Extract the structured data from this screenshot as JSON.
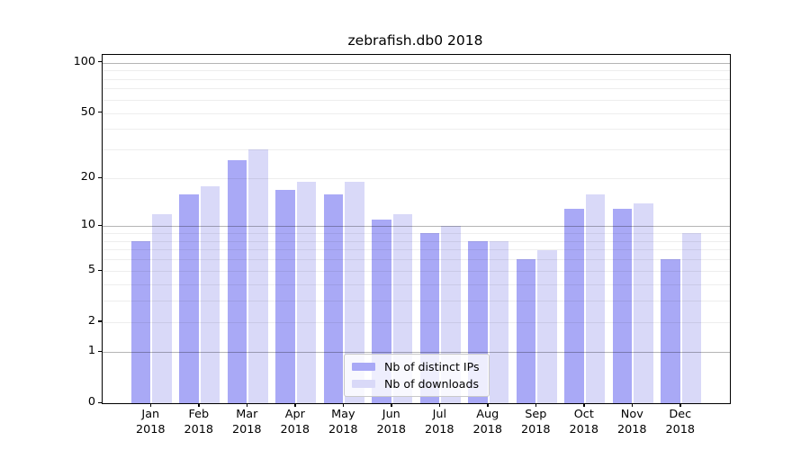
{
  "chart_data": {
    "type": "bar",
    "title": "zebrafish.db0 2018",
    "categories": [
      "Jan 2018",
      "Feb 2018",
      "Mar 2018",
      "Apr 2018",
      "May 2018",
      "Jun 2018",
      "Jul 2018",
      "Aug 2018",
      "Sep 2018",
      "Oct 2018",
      "Nov 2018",
      "Dec 2018"
    ],
    "series": [
      {
        "name": "Nb of distinct IPs",
        "color": "#a9a9f6",
        "values": [
          8,
          16,
          26,
          17,
          16,
          11,
          9,
          8,
          6,
          13,
          13,
          6
        ]
      },
      {
        "name": "Nb of downloads",
        "color": "#d9d9f8",
        "values": [
          12,
          18,
          30,
          19,
          19,
          12,
          10,
          8,
          7,
          16,
          14,
          9
        ]
      }
    ],
    "xlabel": "",
    "ylabel": "",
    "yscale": "log1p",
    "ylim": [
      0,
      115
    ],
    "yticks": [
      100,
      50,
      20,
      10,
      5,
      2,
      1,
      0
    ],
    "grid": {
      "show": true,
      "orientation": "horizontal",
      "major_lines_at": [
        1,
        10,
        100
      ],
      "minor_lines_at": [
        2,
        3,
        4,
        5,
        6,
        7,
        8,
        9,
        20,
        30,
        40,
        50,
        60,
        70,
        80,
        90
      ]
    },
    "legend_position": "lower center, inside plot",
    "bar_style": "grouped pairs per month, gridlines visible through bars"
  }
}
